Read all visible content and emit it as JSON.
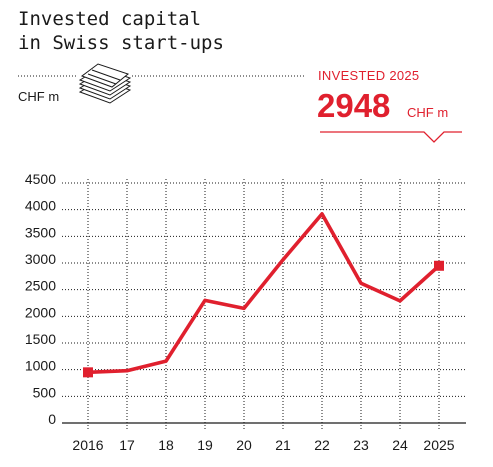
{
  "header": {
    "title_line1": "Invested capital",
    "title_line2": "in Swiss start-ups",
    "unit": "CHF m",
    "icon": "money-stack-icon"
  },
  "highlight": {
    "caption": "INVESTED 2025",
    "value": "2948",
    "unit": "CHF m",
    "color": "#e0202e"
  },
  "colors": {
    "series": "#e0202e",
    "text": "#1a1a1a",
    "grid": "#1a1a1a"
  },
  "chart_data": {
    "type": "line",
    "title": "Invested capital in Swiss start-ups",
    "unit": "CHF m",
    "x": [
      "2016",
      "17",
      "18",
      "19",
      "20",
      "21",
      "22",
      "23",
      "24",
      "2025"
    ],
    "series": [
      {
        "values": [
          950,
          980,
          1160,
          2300,
          2150,
          3060,
          3920,
          2620,
          2290,
          2948
        ],
        "color": "#e0202e"
      }
    ],
    "ylim": [
      0,
      4500
    ],
    "yticks": [
      0,
      500,
      1000,
      1500,
      2000,
      2500,
      3000,
      3500,
      4000,
      4500
    ],
    "grid": "dotted horizontal and vertical",
    "endpoint_markers": "square"
  }
}
